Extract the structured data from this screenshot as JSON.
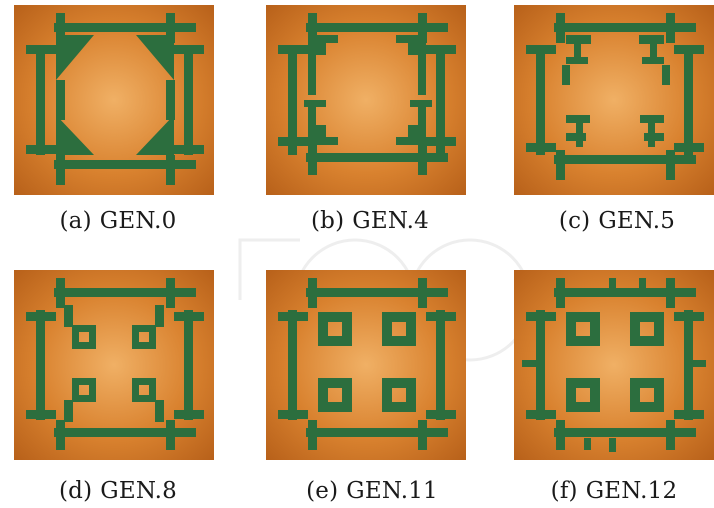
{
  "colors": {
    "copper_dark": "#b8611a",
    "copper_mid": "#d9822f",
    "copper_light": "#f0b065",
    "pattern_green": "#2c6e3e",
    "caption_text": "#1a1a1a"
  },
  "panels": [
    {
      "label": "(a)",
      "title": "GEN.0"
    },
    {
      "label": "(b)",
      "title": "GEN.4"
    },
    {
      "label": "(c)",
      "title": "GEN.5"
    },
    {
      "label": "(d)",
      "title": "GEN.8"
    },
    {
      "label": "(e)",
      "title": "GEN.11"
    },
    {
      "label": "(f)",
      "title": "GEN.12"
    }
  ]
}
